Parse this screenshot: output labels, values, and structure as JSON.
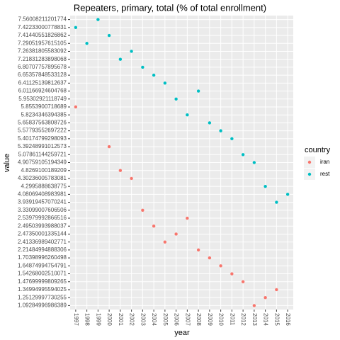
{
  "chart_data": {
    "type": "scatter",
    "title": "Repeaters, primary, total (% of total enrollment)",
    "x_label": "year",
    "y_label": "value",
    "legend_title": "country",
    "categories": [
      "1997",
      "1998",
      "1999",
      "2000",
      "2001",
      "2002",
      "2003",
      "2004",
      "2005",
      "2006",
      "2007",
      "2008",
      "2009",
      "2010",
      "2011",
      "2012",
      "2013",
      "2014",
      "2015",
      "2016"
    ],
    "series": [
      {
        "name": "iran",
        "color": "#F8766D",
        "values": [
          5.8553900718689,
          null,
          null,
          5.39248991012573,
          4.8269100189209,
          4.30236005783081,
          3.33099007606506,
          2.49503993988037,
          2.41336989402771,
          2.47350001335144,
          2.53979992866516,
          2.21484994888306,
          1.70398996260498,
          1.64874994754791,
          1.54268002510071,
          1.47699999809265,
          1.09284996986389,
          1.25129997730255,
          1.34994995594025,
          null
        ]
      },
      {
        "name": "rest",
        "color": "#00BFC4",
        "values": [
          7.42233000778831,
          7.29051957615105,
          7.56008211201774,
          7.41440551826862,
          7.21831283898068,
          7.26381805583092,
          6.80707757895678,
          6.65357848533128,
          6.41125139812637,
          5.95302921118749,
          5.8234346394385,
          6.01166924604768,
          5.65837563808726,
          5.57793552697222,
          5.40174799298093,
          5.07861144259721,
          4.90759105194349,
          4.2995888638775,
          3.93919457070241,
          4.08069408983981
        ]
      }
    ],
    "yticks": [
      1.09284996986389,
      1.25129997730255,
      1.34994995594025,
      1.47699999809265,
      1.54268002510071,
      1.64874994754791,
      1.70398996260498,
      2.21484994888306,
      2.41336989402771,
      2.47350001335144,
      2.49503993988037,
      2.53979992866516,
      3.33099007606506,
      3.93919457070241,
      4.08069408983981,
      4.2995888638775,
      4.30236005783081,
      4.8269100189209,
      4.90759105194349,
      5.07861144259721,
      5.39248991012573,
      5.40174799298093,
      5.57793552697222,
      5.65837563808726,
      5.8234346394385,
      5.8553900718689,
      5.95302921118749,
      6.01166924604768,
      6.41125139812637,
      6.65357848533128,
      6.80707757895678,
      7.21831283898068,
      7.26381805583092,
      7.29051957615105,
      7.41440551826862,
      7.42233000778831,
      7.56008211201774
    ],
    "grid": true
  }
}
